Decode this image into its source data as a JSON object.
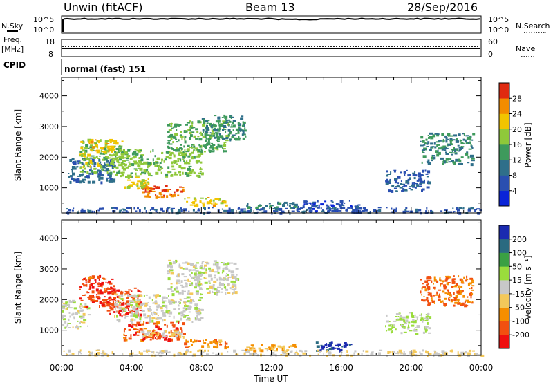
{
  "header": {
    "station": "Unwin (fitACF)",
    "beam": "Beam 13",
    "date": "28/Sep/2016"
  },
  "top_panels": {
    "nsky_label": "N.Sky",
    "nsky_ticks": [
      "10^5",
      "10^0"
    ],
    "nsearch_label": "N.Search",
    "nsearch_ticks": [
      "10^5",
      "10^0"
    ],
    "freq_label_1": "Freq.",
    "freq_label_2": "[MHz]",
    "freq_ticks": [
      "18",
      "8"
    ],
    "nave_label": "Nave",
    "nave_ticks": [
      "60",
      "0"
    ],
    "cpid_label": "CPID",
    "cpid_value": "normal (fast) 151"
  },
  "chart_data": [
    {
      "type": "heatmap",
      "name": "power",
      "ylabel": "Slant Range [km]",
      "xlabel": "",
      "ylim": [
        180,
        4600
      ],
      "yticks": [
        "1000",
        "2000",
        "3000",
        "4000"
      ],
      "xlim": [
        0,
        24
      ],
      "x_ticks": [
        "00:00",
        "04:00",
        "08:00",
        "12:00",
        "16:00",
        "20:00",
        "00:00"
      ],
      "colorbar_label": "Power [dB]",
      "colorbar_ticks": [
        "4",
        "8",
        "12",
        "16",
        "20",
        "24",
        "28"
      ],
      "colorbar_range": [
        0,
        32
      ],
      "colorbar_colors": [
        "#0a24d8",
        "#2a4fb0",
        "#2f6f8a",
        "#3e9a5c",
        "#8fc83a",
        "#f2c400",
        "#f28c00",
        "#e02a10"
      ],
      "regions": [
        {
          "t": [
            0.3,
            3.0
          ],
          "r": [
            1200,
            2000
          ],
          "v": 9
        },
        {
          "t": [
            1.0,
            3.5
          ],
          "r": [
            1500,
            2600
          ],
          "v": 18
        },
        {
          "t": [
            1.5,
            3.0
          ],
          "r": [
            2200,
            2600
          ],
          "v": 23
        },
        {
          "t": [
            3.0,
            8.0
          ],
          "r": [
            1400,
            2300
          ],
          "v": 17
        },
        {
          "t": [
            3.5,
            5.0
          ],
          "r": [
            1000,
            1400
          ],
          "v": 21
        },
        {
          "t": [
            4.5,
            7.0
          ],
          "r": [
            700,
            1100
          ],
          "v": 27
        },
        {
          "t": [
            6.0,
            9.5
          ],
          "r": [
            2200,
            3200
          ],
          "v": 15
        },
        {
          "t": [
            8.0,
            10.5
          ],
          "r": [
            2600,
            3400
          ],
          "v": 13
        },
        {
          "t": [
            7.0,
            9.5
          ],
          "r": [
            450,
            700
          ],
          "v": 22
        },
        {
          "t": [
            10.5,
            13.5
          ],
          "r": [
            350,
            550
          ],
          "v": 12
        },
        {
          "t": [
            13.5,
            17.0
          ],
          "r": [
            250,
            600
          ],
          "v": 6
        },
        {
          "t": [
            0.0,
            24.0
          ],
          "r": [
            200,
            380
          ],
          "v": 7
        },
        {
          "t": [
            18.5,
            21.0
          ],
          "r": [
            900,
            1600
          ],
          "v": 7
        },
        {
          "t": [
            20.5,
            23.5
          ],
          "r": [
            1800,
            2800
          ],
          "v": 12
        }
      ]
    },
    {
      "type": "heatmap",
      "name": "velocity",
      "ylabel": "Slant Range [km]",
      "xlabel": "Time UT",
      "ylim": [
        180,
        4600
      ],
      "yticks": [
        "1000",
        "2000",
        "3000",
        "4000"
      ],
      "xlim": [
        0,
        24
      ],
      "x_ticks": [
        "00:00",
        "04:00",
        "08:00",
        "12:00",
        "16:00",
        "20:00",
        "00:00"
      ],
      "colorbar_label": "Velocity [m s⁻¹]",
      "colorbar_ticks": [
        "200",
        "100",
        "50",
        "15",
        "-15",
        "-50",
        "-100",
        "-200"
      ],
      "colorbar_range": [
        -250,
        250
      ],
      "colorbar_colors": [
        "#ee1010",
        "#f25010",
        "#f58e00",
        "#f3c85a",
        "#c8c8c8",
        "#9adc3c",
        "#3aa043",
        "#2a6a80",
        "#1a2ab0"
      ],
      "regions": [
        {
          "t": [
            0.0,
            1.5
          ],
          "r": [
            1100,
            2000
          ],
          "v": 0
        },
        {
          "t": [
            1.0,
            3.0
          ],
          "r": [
            1800,
            2800
          ],
          "v": -180
        },
        {
          "t": [
            2.5,
            4.5
          ],
          "r": [
            1500,
            2400
          ],
          "v": -190
        },
        {
          "t": [
            3.0,
            8.0
          ],
          "r": [
            1300,
            2200
          ],
          "v": 0
        },
        {
          "t": [
            3.5,
            7.0
          ],
          "r": [
            700,
            1300
          ],
          "v": -170
        },
        {
          "t": [
            4.5,
            7.0
          ],
          "r": [
            800,
            1000
          ],
          "v": -35
        },
        {
          "t": [
            6.0,
            10.0
          ],
          "r": [
            2200,
            3300
          ],
          "v": 5
        },
        {
          "t": [
            7.0,
            9.5
          ],
          "r": [
            450,
            700
          ],
          "v": -120
        },
        {
          "t": [
            10.5,
            13.5
          ],
          "r": [
            350,
            550
          ],
          "v": -80
        },
        {
          "t": [
            14.5,
            16.5
          ],
          "r": [
            350,
            650
          ],
          "v": 210
        },
        {
          "t": [
            0.0,
            24.0
          ],
          "r": [
            200,
            380
          ],
          "v": -20
        },
        {
          "t": [
            18.5,
            21.0
          ],
          "r": [
            900,
            1600
          ],
          "v": 35
        },
        {
          "t": [
            20.5,
            23.5
          ],
          "r": [
            1800,
            2800
          ],
          "v": -150
        }
      ]
    }
  ]
}
